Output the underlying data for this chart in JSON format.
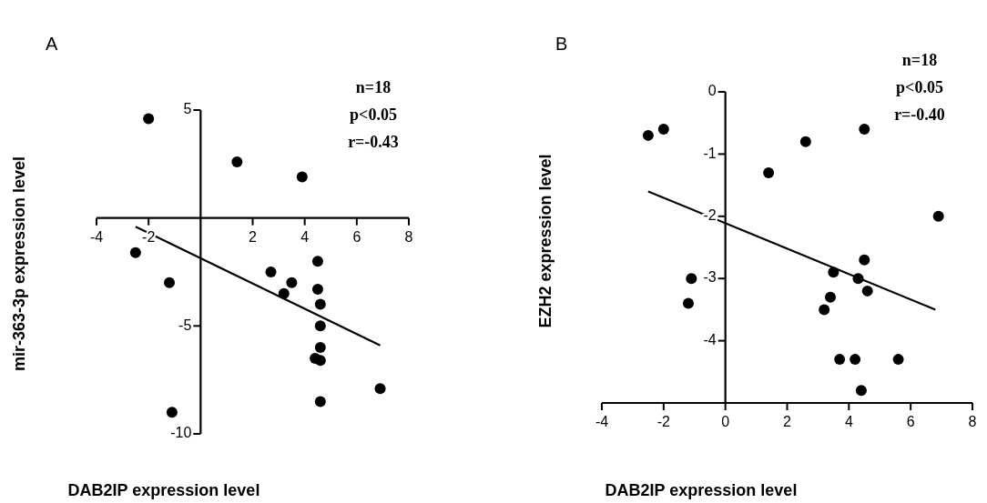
{
  "chart_data": [
    {
      "type": "scatter",
      "title": "A",
      "xlabel": "DAB2IP expression level",
      "ylabel": "mir-363-3p expression level",
      "annotations": [
        "n=18",
        "p<0.05",
        "r=-0.43"
      ],
      "xlim": [
        -4,
        8
      ],
      "ylim": [
        -10,
        5
      ],
      "xticks": [
        -4,
        -2,
        2,
        4,
        6,
        8
      ],
      "yticks": [
        5,
        -5,
        -10
      ],
      "series": [
        {
          "marker": "circle",
          "color": "#000000",
          "x": [
            -2.0,
            1.4,
            3.9,
            -2.5,
            -1.2,
            -1.1,
            2.7,
            3.5,
            3.2,
            4.5,
            4.5,
            4.6,
            4.6,
            4.6,
            4.4,
            4.6,
            4.6,
            6.9
          ],
          "values": [
            4.6,
            2.6,
            1.9,
            -1.6,
            -3.0,
            -9.0,
            -2.5,
            -3.0,
            -3.5,
            -2.0,
            -3.3,
            -4.0,
            -5.0,
            -6.0,
            -6.5,
            -6.6,
            -8.5,
            -7.9
          ]
        },
        {
          "type": "line",
          "color": "#000000",
          "x": [
            -2.5,
            6.9
          ],
          "values": [
            -0.4,
            -5.9
          ]
        }
      ]
    },
    {
      "type": "scatter",
      "title": "B",
      "xlabel": "DAB2IP expression level",
      "ylabel": "EZH2 expression level",
      "annotations": [
        "n=18",
        "p<0.05",
        "r=-0.40"
      ],
      "xlim": [
        -4,
        8
      ],
      "ylim": [
        -5,
        0
      ],
      "xticks": [
        -4,
        -2,
        0,
        2,
        4,
        6,
        8
      ],
      "yticks": [
        0,
        -1,
        -2,
        -3,
        -4
      ],
      "series": [
        {
          "marker": "circle",
          "color": "#000000",
          "x": [
            -2.5,
            -2.0,
            1.4,
            2.6,
            4.5,
            6.9,
            -1.1,
            -1.2,
            3.5,
            3.4,
            3.2,
            4.5,
            4.3,
            4.6,
            3.7,
            4.2,
            4.4,
            5.6
          ],
          "values": [
            -0.7,
            -0.6,
            -1.3,
            -0.8,
            -0.6,
            -2.0,
            -3.0,
            -3.4,
            -2.9,
            -3.3,
            -3.5,
            -2.7,
            -3.0,
            -3.2,
            -4.3,
            -4.3,
            -4.8,
            -4.3
          ]
        },
        {
          "type": "line",
          "color": "#000000",
          "x": [
            -2.5,
            6.8
          ],
          "values": [
            -1.6,
            -3.5
          ]
        }
      ]
    }
  ]
}
